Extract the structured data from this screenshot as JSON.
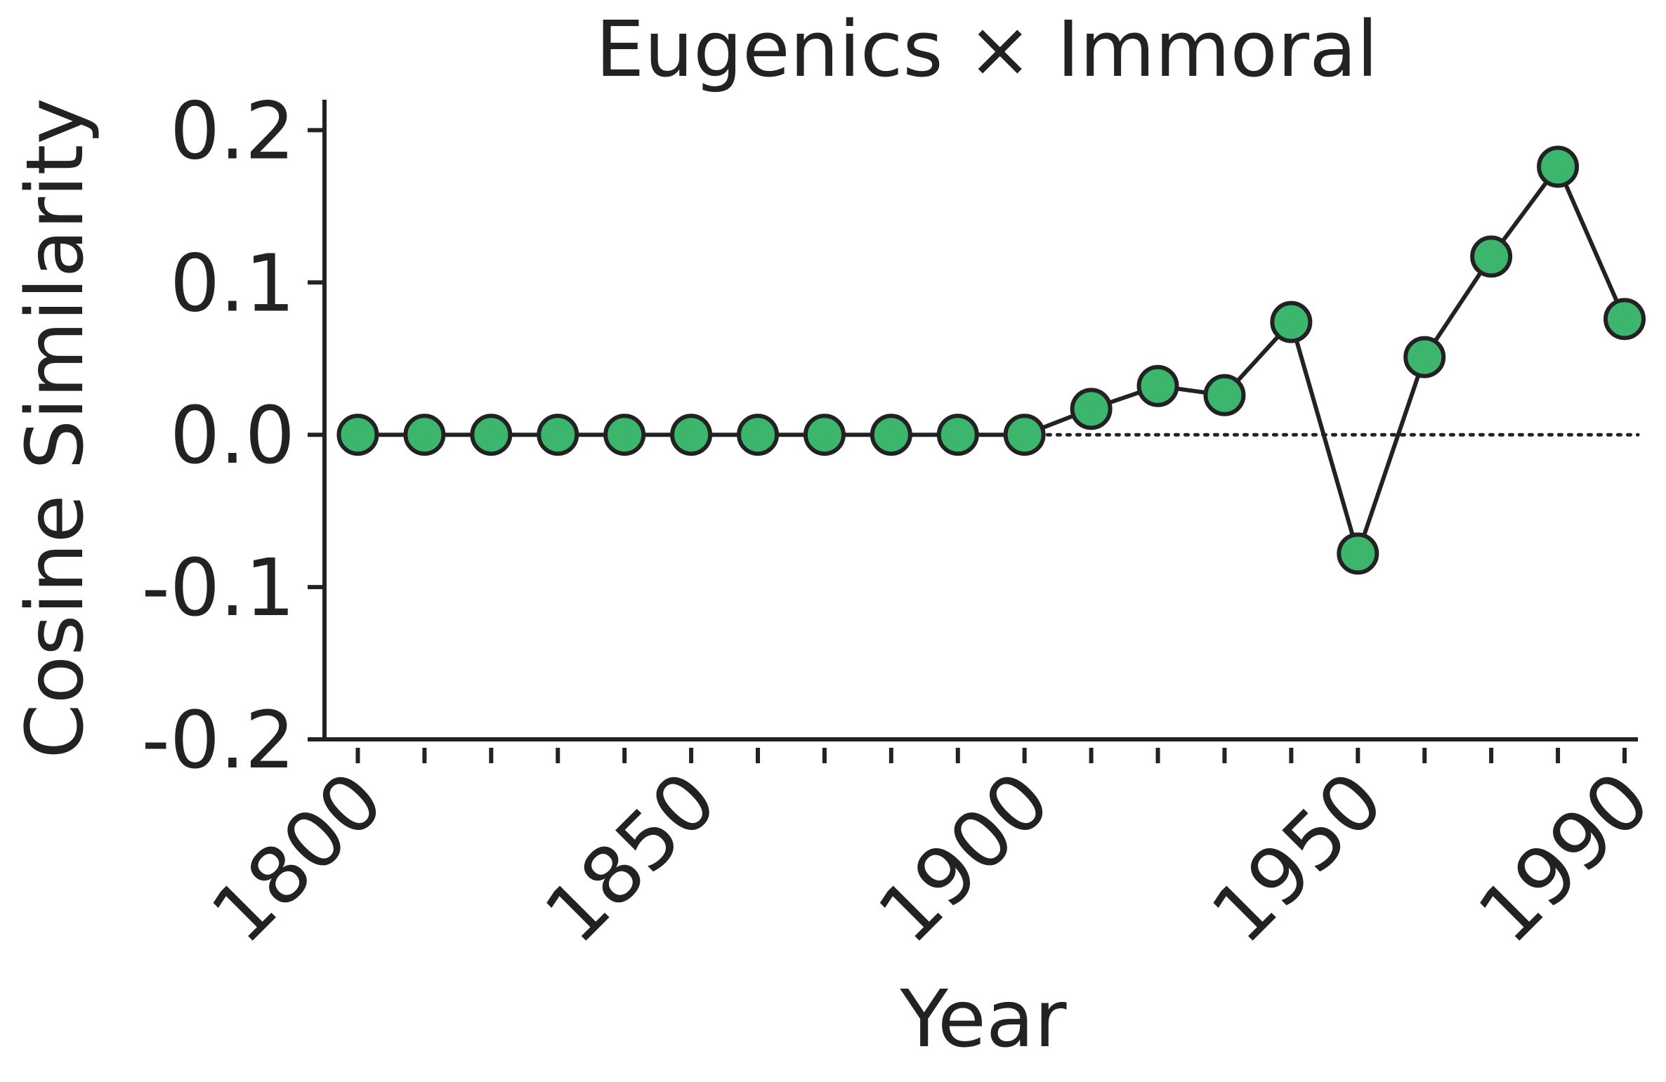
{
  "chart_data": {
    "type": "line",
    "title": "Eugenics × Immoral",
    "xlabel": "Year",
    "ylabel": "Cosine Similarity",
    "xlim": [
      1795,
      1992
    ],
    "ylim": [
      -0.2,
      0.22
    ],
    "x": [
      1800,
      1810,
      1820,
      1830,
      1840,
      1850,
      1860,
      1870,
      1880,
      1890,
      1900,
      1910,
      1920,
      1930,
      1940,
      1950,
      1960,
      1970,
      1980,
      1990
    ],
    "series": [
      {
        "values": [
          0.0,
          0.0,
          0.0,
          0.0,
          0.0,
          0.0,
          0.0,
          0.0,
          0.0,
          0.0,
          0.0,
          0.017,
          0.032,
          0.026,
          0.074,
          -0.078,
          0.051,
          0.117,
          0.176,
          0.076
        ]
      }
    ],
    "xticks": [
      1800,
      1850,
      1900,
      1950,
      1990
    ],
    "xtick_labels": [
      "1800",
      "1850",
      "1900",
      "1950",
      "1990"
    ],
    "minor_xticks": [
      1800,
      1810,
      1820,
      1830,
      1840,
      1850,
      1860,
      1870,
      1880,
      1890,
      1900,
      1910,
      1920,
      1930,
      1940,
      1950,
      1960,
      1970,
      1980,
      1990
    ],
    "yticks": [
      -0.2,
      -0.1,
      0.0,
      0.1,
      0.2
    ],
    "ytick_labels": [
      "-0.2",
      "-0.1",
      "0.0",
      "0.1",
      "0.2"
    ],
    "reference_line_y": 0.0,
    "grid": false,
    "colors": {
      "marker": "#3cb56d",
      "line": "#222222",
      "axis": "#222222"
    }
  }
}
